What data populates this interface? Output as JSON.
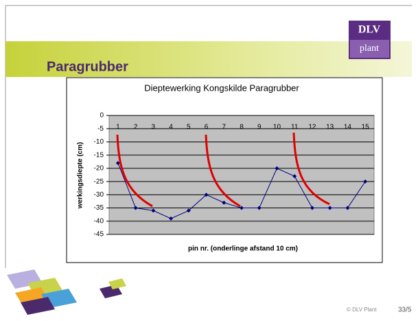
{
  "slide": {
    "title": "Paragrubber",
    "logo_top": "DLV",
    "logo_bottom": "plant",
    "footer": "© DLV Plant",
    "page": "33/5"
  },
  "chart_data": {
    "type": "line",
    "title": "Dieptewerking Kongskilde Paragrubber",
    "x_label": "pin nr. (onderlinge afstand 10 cm)",
    "y_label": "werkingsdiepte (cm)",
    "categories": [
      "1",
      "2",
      "3",
      "4",
      "5",
      "6",
      "7",
      "8",
      "9",
      "10",
      "11",
      "12",
      "13",
      "14",
      "15"
    ],
    "values": [
      -18,
      -35,
      -36,
      -39,
      -36,
      -30,
      -33,
      -35,
      -35,
      -20,
      -23,
      -35,
      -35,
      -35,
      -25
    ],
    "color": "#000080",
    "ylim": [
      -45,
      0
    ],
    "yticks": [
      0,
      -5,
      -10,
      -15,
      -20,
      -25,
      -30,
      -35,
      -40,
      -45
    ],
    "grid": true
  }
}
